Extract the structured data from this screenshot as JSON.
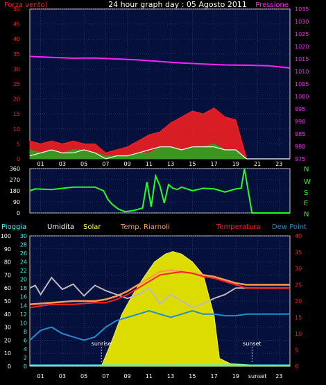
{
  "title": "24 hour graph day : 05 Agosto 2011",
  "colors": {
    "wind_avg": "#ffffff",
    "wind_gust": "#ff2020",
    "wind_base": "#1faa1f",
    "pressure": "#ff22ff",
    "direction": "#22ff22",
    "rain": "#33ffff",
    "humidity": "#bbbbbb",
    "solar": "#e8e800",
    "temp_riarnoli": "#ff9a55",
    "temperature": "#ff2020",
    "dew_point": "#1e8fd0",
    "panel_bg": "#06103c",
    "axis": "#ffffff"
  },
  "chart_data": [
    {
      "type": "line",
      "x_ticks": [
        "01",
        "03",
        "05",
        "07",
        "09",
        "11",
        "13",
        "15",
        "17",
        "19",
        "21",
        "23"
      ],
      "left_axis": {
        "label": "Forza vento)",
        "ticks": [
          "0",
          "5",
          "10",
          "15",
          "20",
          "25",
          "30",
          "35",
          "40",
          "45",
          "50"
        ],
        "ylim": [
          0,
          50
        ]
      },
      "right_axis": {
        "label": "Pressione",
        "ticks": [
          "975",
          "980",
          "985",
          "990",
          "995",
          "1000",
          "1005",
          "1010",
          "1015",
          "1020",
          "1025",
          "1030",
          "1035"
        ],
        "ylim": [
          975,
          1035
        ]
      },
      "grid": true,
      "series": [
        {
          "id": "pressure",
          "axis": "right",
          "x": [
            0,
            2,
            4,
            6,
            8,
            10,
            12,
            14,
            16,
            18,
            20,
            22,
            24
          ],
          "values": [
            1016.0,
            1015.6,
            1015.3,
            1015.4,
            1015.0,
            1014.6,
            1014.0,
            1013.4,
            1013.0,
            1012.6,
            1012.5,
            1012.3,
            1011.4
          ]
        },
        {
          "id": "wind_gust",
          "axis": "left",
          "x": [
            0,
            1,
            2,
            3,
            4,
            5,
            6,
            7,
            8,
            9,
            10,
            11,
            12,
            13,
            14,
            15,
            16,
            17,
            18,
            19,
            20,
            21,
            22,
            23,
            24
          ],
          "values": [
            6,
            5,
            6,
            5,
            6,
            5,
            5,
            2,
            3,
            4,
            6,
            8,
            9,
            12,
            14,
            16,
            15,
            17,
            14,
            13,
            0,
            0,
            0,
            0,
            0
          ]
        },
        {
          "id": "wind_base",
          "axis": "left",
          "x": [
            0,
            1,
            2,
            3,
            4,
            5,
            6,
            7,
            8,
            9,
            10,
            11,
            12,
            13,
            14,
            15,
            16,
            17,
            18,
            19,
            20,
            21,
            22,
            23,
            24
          ],
          "values": [
            3,
            2,
            3,
            2,
            3,
            3,
            2,
            1,
            1,
            1,
            2,
            2,
            4,
            4,
            3,
            4,
            4,
            5,
            3,
            3,
            0,
            0,
            0,
            0,
            0
          ]
        },
        {
          "id": "wind_avg",
          "axis": "left",
          "x": [
            0,
            1,
            2,
            3,
            4,
            5,
            6,
            7,
            8,
            9,
            10,
            11,
            12,
            13,
            14,
            15,
            16,
            17,
            18,
            19,
            20,
            21,
            22,
            23,
            24
          ],
          "values": [
            1,
            2,
            3,
            2,
            2,
            3,
            2,
            0,
            1,
            1,
            2,
            3,
            4,
            4,
            3,
            4,
            4,
            4,
            3,
            3,
            0,
            0,
            0,
            0,
            0
          ]
        }
      ]
    },
    {
      "type": "line",
      "x_ticks": [
        "01",
        "03",
        "05",
        "07",
        "09",
        "11",
        "13",
        "15",
        "17",
        "19",
        "21",
        "23"
      ],
      "left_axis": {
        "ticks": [
          "0",
          "90",
          "180",
          "270",
          "360"
        ],
        "ylim": [
          0,
          360
        ]
      },
      "right_axis": {
        "ticks": [
          "N",
          "W",
          "S",
          "E",
          "N"
        ]
      },
      "grid": true,
      "series": [
        {
          "id": "direction",
          "x": [
            0,
            0.5,
            2,
            4,
            6,
            6.8,
            7.2,
            7.6,
            8.2,
            8.8,
            9.6,
            10.4,
            10.8,
            11.2,
            11.6,
            12.0,
            12.4,
            12.8,
            13.2,
            13.6,
            14.0,
            15,
            16,
            17,
            18,
            19,
            19.5,
            19.8,
            20.5,
            22,
            24
          ],
          "values": [
            180,
            195,
            190,
            210,
            210,
            180,
            110,
            70,
            30,
            10,
            20,
            40,
            250,
            50,
            300,
            220,
            80,
            230,
            200,
            190,
            210,
            180,
            200,
            195,
            170,
            195,
            200,
            360,
            0,
            0,
            0
          ]
        }
      ]
    },
    {
      "type": "line",
      "legend": [
        "Pioggia",
        "Umidita",
        "Solar",
        "Temp. Riarnoli",
        "Temperatura",
        "Dew Point"
      ],
      "x_ticks": [
        "01",
        "03",
        "05",
        "07",
        "09",
        "11",
        "13",
        "15",
        "17",
        "19",
        "sunset",
        "23"
      ],
      "left_axis_outer": {
        "label": "Umidita",
        "ticks": [
          "0",
          "10",
          "20",
          "30",
          "40",
          "50",
          "60",
          "70",
          "80",
          "90",
          "100"
        ],
        "ylim": [
          0,
          100
        ]
      },
      "left_axis_inner": {
        "label": "Pioggia",
        "ticks": [
          "0",
          "2",
          "4",
          "6",
          "8",
          "10",
          "12",
          "14",
          "16",
          "18",
          "20",
          "22",
          "24",
          "26",
          "28",
          "30"
        ],
        "ylim": [
          0,
          30
        ]
      },
      "right_axis": {
        "label": "Temperatura",
        "ticks": [
          "0",
          "5",
          "10",
          "15",
          "20",
          "25",
          "30",
          "35",
          "40"
        ],
        "ylim": [
          0,
          40
        ]
      },
      "annotations": [
        {
          "text": "sunrise",
          "x": 6.6
        },
        {
          "text": "sunset",
          "x": 20.5
        }
      ],
      "grid": true,
      "series": [
        {
          "id": "rain",
          "axis": "inner",
          "x": [
            0,
            24
          ],
          "values": [
            0.2,
            0.2
          ]
        },
        {
          "id": "solar",
          "axis": "outer",
          "x": [
            6.6,
            7.5,
            8.5,
            9.5,
            10.5,
            11.5,
            12.5,
            13.2,
            14.0,
            15.0,
            16.0,
            17.0,
            17.5,
            18.5,
            19.5,
            20.5,
            21.5,
            23.0,
            24.0
          ],
          "values": [
            0,
            18,
            40,
            55,
            68,
            80,
            86,
            88,
            86,
            80,
            70,
            39,
            6,
            2,
            1.5,
            1,
            0.8,
            0.6,
            0.6
          ]
        },
        {
          "id": "humidity",
          "axis": "outer",
          "x": [
            0,
            0.5,
            1,
            2,
            3,
            4,
            5,
            6,
            7,
            8,
            9,
            10,
            11,
            12,
            13,
            14,
            15,
            16,
            17,
            18,
            19,
            20,
            21,
            22,
            24
          ],
          "values": [
            60,
            62,
            55,
            68,
            59,
            63,
            54,
            62,
            58,
            55,
            52,
            55,
            60,
            48,
            55,
            50,
            45,
            48,
            52,
            55,
            60,
            60,
            60,
            60,
            60
          ]
        },
        {
          "id": "temp_riarnoli",
          "axis": "right",
          "x": [
            0,
            2,
            4,
            6,
            7,
            8,
            9,
            10,
            11,
            12,
            13,
            14,
            15,
            16,
            17,
            18,
            19,
            20,
            21,
            22,
            24
          ],
          "values": [
            19,
            19.5,
            20,
            20,
            20.5,
            21.5,
            23,
            25,
            27,
            29,
            29.5,
            29,
            28.5,
            28,
            27.5,
            26.5,
            25.5,
            25,
            25,
            25,
            25
          ]
        },
        {
          "id": "temperature",
          "axis": "right",
          "x": [
            0,
            2,
            4,
            6,
            7,
            8,
            9,
            10,
            11,
            12,
            13,
            14,
            15,
            16,
            17,
            18,
            19,
            20,
            21,
            22,
            24
          ],
          "values": [
            18,
            19,
            19,
            19.5,
            19.5,
            20.5,
            22,
            24,
            26,
            28,
            28.5,
            29,
            28.5,
            27.5,
            27,
            26,
            25,
            24,
            24,
            24,
            24
          ]
        },
        {
          "id": "dew_point",
          "axis": "right",
          "x": [
            0,
            1,
            2,
            3,
            4,
            5,
            6,
            7,
            8,
            9,
            10,
            11,
            12,
            13,
            14,
            15,
            16,
            17,
            18,
            19,
            20,
            21,
            22,
            24
          ],
          "values": [
            8,
            11,
            12,
            10,
            9,
            8,
            9,
            12,
            14,
            15,
            16,
            17,
            16,
            15,
            16,
            17,
            16,
            16,
            15.5,
            15.5,
            16,
            16,
            16,
            16
          ]
        }
      ]
    }
  ]
}
